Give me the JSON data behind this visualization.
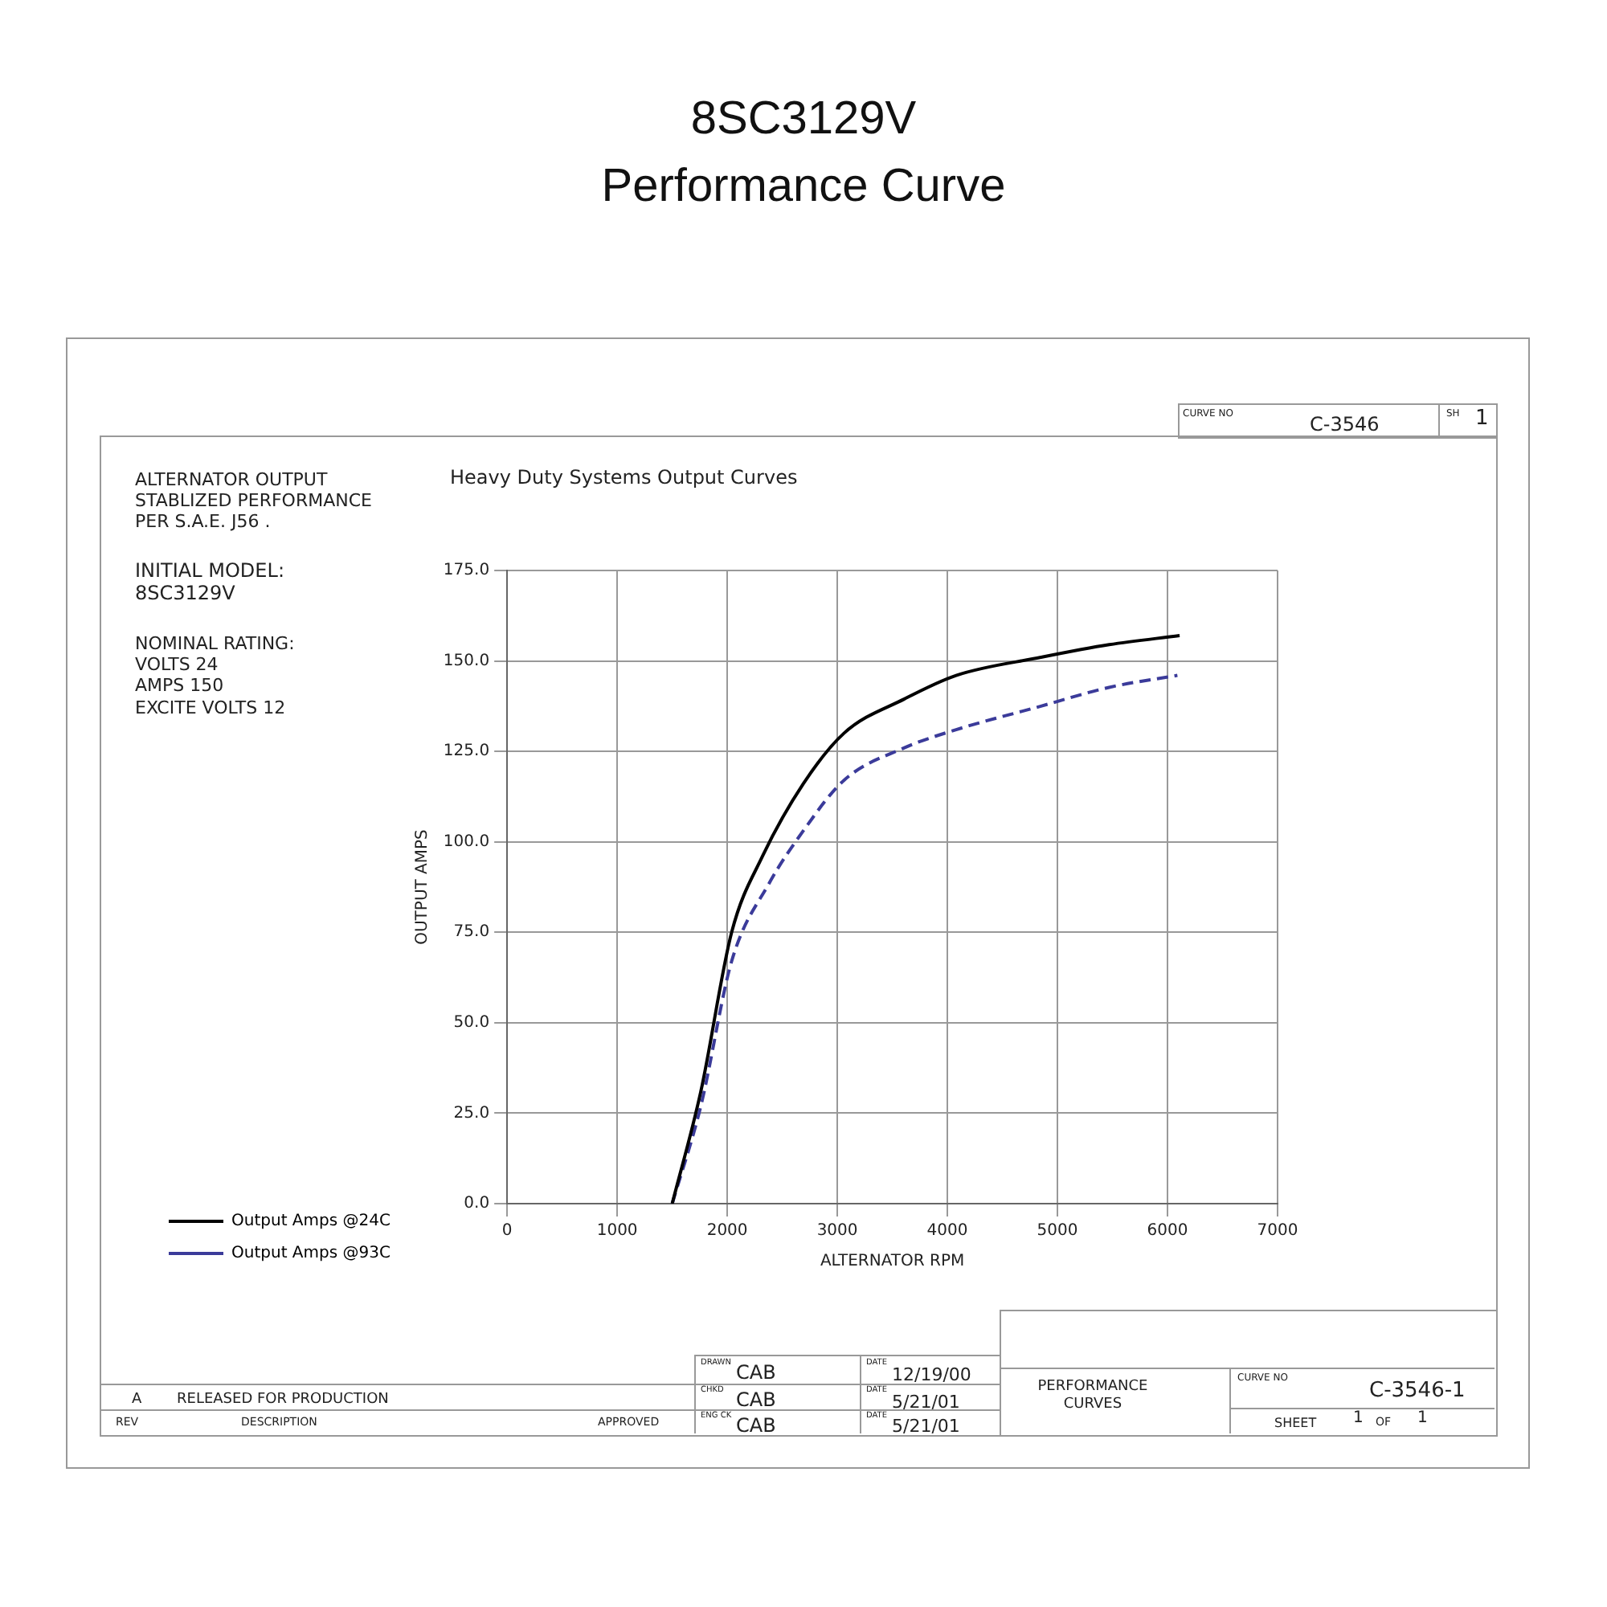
{
  "chart_data": {
    "type": "line",
    "title": "8SC3129V",
    "subtitle": "Performance Curve",
    "xlabel": "ALTERNATOR RPM",
    "ylabel": "OUTPUT AMPS",
    "xlim": [
      0,
      7000
    ],
    "xticks": [
      0,
      1000,
      2000,
      3000,
      4000,
      5000,
      6000,
      7000
    ],
    "ylim": [
      0,
      175
    ],
    "yticks": [
      {
        "value": 0,
        "label": "0.0"
      },
      {
        "value": 25,
        "label": "25.0"
      },
      {
        "value": 50,
        "label": "50.0"
      },
      {
        "value": 75,
        "label": "75.0"
      },
      {
        "value": 100,
        "label": "100.0"
      },
      {
        "value": 125,
        "label": "125.0"
      },
      {
        "value": 150,
        "label": "150.0"
      },
      {
        "value": 175,
        "label": "175.0"
      }
    ],
    "grid": true,
    "legend": "left",
    "marker": "none",
    "series": [
      {
        "name": "Output Amps @24C",
        "color": "#000000",
        "line_style": "solid",
        "x": [
          1500,
          1760,
          2040,
          2320,
          2690,
          3060,
          3610,
          4080,
          4850,
          5470,
          6110
        ],
        "values": [
          0,
          31,
          75,
          96,
          116,
          130,
          139.5,
          146,
          151,
          154.5,
          157
        ]
      },
      {
        "name": "Output Amps @93C",
        "color": "#3b3b9a",
        "line_style": "dashed",
        "x": [
          1500,
          1760,
          2040,
          2380,
          2690,
          3060,
          3610,
          4080,
          4850,
          5470,
          6090
        ],
        "values": [
          0,
          27,
          67,
          88.5,
          103,
          117,
          126,
          131,
          137.5,
          142.7,
          146
        ]
      }
    ],
    "annotations": [
      "ALTERNATOR OUTPUT\nSTABLIZED PERFORMANCE\nPER S.A.E. J56 .",
      "INITIAL MODEL:\n8SC3129V",
      "NOMINAL RATING:\nVOLTS 24\nAMPS 150\nEXCITE VOLTS 12",
      "Heavy Duty Systems Output Curves",
      "CURVE NO",
      "C-3546",
      "SH",
      "1",
      "A",
      "RELEASED FOR PRODUCTION",
      "REV",
      "DESCRIPTION",
      "APPROVED",
      "DRAWN",
      "CAB",
      "DATE",
      "12/19/00",
      "CHKD",
      "CAB",
      "DATE",
      "5/21/01",
      "ENG CK",
      "CAB",
      "DATE",
      "5/21/01",
      "PERFORMANCE\nCURVES",
      "CURVE NO",
      "C-3546-1",
      "SHEET",
      "1",
      "OF",
      "1"
    ]
  }
}
